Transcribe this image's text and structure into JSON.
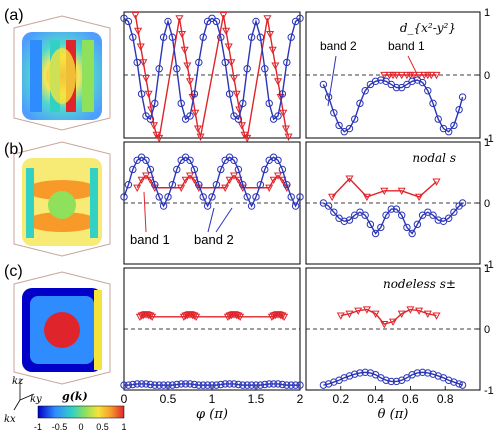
{
  "panel_labels": [
    "(a)",
    "(b)",
    "(c)"
  ],
  "colors": {
    "band1": "#e0242b",
    "band2": "#2b35b8",
    "colorbar": [
      "#0000c8",
      "#2f8cff",
      "#33d1c4",
      "#8fe05a",
      "#f5e33a",
      "#f79a2a",
      "#e0242b"
    ]
  },
  "colorbar": {
    "label": "g(k)",
    "ticks": [
      "-1",
      "-0.5",
      "0",
      "0.5",
      "1"
    ]
  },
  "axes_labels": {
    "kz": "kz",
    "ky": "ky",
    "kx": "kx"
  },
  "chart_data": [
    {
      "type": "line",
      "row": "a",
      "title": "",
      "xlabel": "",
      "ylabel": "",
      "xlim": [
        0,
        2
      ],
      "ylim": [
        -1,
        1
      ],
      "grid": false,
      "series": [
        {
          "name": "band 1",
          "color": "#e0242b",
          "marker": "triangle-down",
          "x": [
            0.13,
            0.16,
            0.19,
            0.22,
            0.25,
            0.28,
            0.31,
            0.34,
            0.37,
            0.4,
            0.63,
            0.66,
            0.69,
            0.72,
            0.75,
            0.78,
            0.81,
            0.84,
            0.87,
            1.13,
            1.16,
            1.19,
            1.22,
            1.25,
            1.28,
            1.31,
            1.34,
            1.37,
            1.4,
            1.63,
            1.66,
            1.69,
            1.72,
            1.75,
            1.78,
            1.81,
            1.84,
            1.87
          ],
          "y": [
            0.95,
            0.7,
            0.45,
            0.2,
            -0.05,
            -0.3,
            -0.55,
            -0.8,
            -0.95,
            -1.0,
            0.9,
            0.65,
            0.4,
            0.15,
            -0.1,
            -0.35,
            -0.6,
            -0.85,
            -0.98,
            0.95,
            0.7,
            0.45,
            0.2,
            -0.05,
            -0.3,
            -0.55,
            -0.8,
            -0.95,
            -1.0,
            0.9,
            0.65,
            0.4,
            0.15,
            -0.1,
            -0.35,
            -0.6,
            -0.85,
            -0.98
          ]
        },
        {
          "name": "band 2",
          "color": "#2b35b8",
          "marker": "circle",
          "x": [
            0.0,
            0.05,
            0.1,
            0.15,
            0.2,
            0.25,
            0.3,
            0.35,
            0.4,
            0.45,
            0.5,
            0.55,
            0.6,
            0.65,
            0.7,
            0.75,
            0.8,
            0.85,
            0.9,
            0.95,
            1.0,
            1.05,
            1.1,
            1.15,
            1.2,
            1.25,
            1.3,
            1.35,
            1.4,
            1.45,
            1.5,
            1.55,
            1.6,
            1.65,
            1.7,
            1.75,
            1.8,
            1.85,
            1.9,
            1.95,
            2.0
          ],
          "y": [
            0.9,
            0.85,
            0.6,
            0.2,
            -0.3,
            -0.65,
            -0.7,
            -0.45,
            0.1,
            0.6,
            0.85,
            0.6,
            0.1,
            -0.45,
            -0.7,
            -0.65,
            -0.3,
            0.2,
            0.6,
            0.85,
            0.9,
            0.85,
            0.6,
            0.2,
            -0.3,
            -0.65,
            -0.7,
            -0.45,
            0.1,
            0.6,
            0.85,
            0.6,
            0.1,
            -0.45,
            -0.7,
            -0.65,
            -0.3,
            0.2,
            0.6,
            0.85,
            0.9
          ]
        }
      ]
    },
    {
      "type": "line",
      "row": "a",
      "title": "d_{x²-y²}",
      "xlabel": "",
      "ylabel": "",
      "xlim": [
        0,
        1
      ],
      "ylim": [
        -1,
        1
      ],
      "grid": false,
      "annotations": [
        "band 2",
        "band 1"
      ],
      "series": [
        {
          "name": "band 1",
          "color": "#e0242b",
          "marker": "triangle-down",
          "x": [
            0.45,
            0.48,
            0.5,
            0.52,
            0.55,
            0.58,
            0.6,
            0.62,
            0.65,
            0.68,
            0.7,
            0.72,
            0.75
          ],
          "y": [
            0.0,
            0.0,
            0.0,
            0.0,
            0.0,
            0.0,
            0.0,
            0.0,
            0.0,
            0.0,
            0.0,
            0.0,
            0.0
          ]
        },
        {
          "name": "band 2",
          "color": "#2b35b8",
          "marker": "circle",
          "x": [
            0.1,
            0.13,
            0.16,
            0.19,
            0.22,
            0.25,
            0.28,
            0.31,
            0.34,
            0.37,
            0.4,
            0.43,
            0.46,
            0.49,
            0.52,
            0.55,
            0.58,
            0.61,
            0.64,
            0.67,
            0.7,
            0.73,
            0.76,
            0.79,
            0.82,
            0.85,
            0.88,
            0.9
          ],
          "y": [
            -0.15,
            -0.35,
            -0.6,
            -0.8,
            -0.9,
            -0.85,
            -0.7,
            -0.45,
            -0.25,
            -0.15,
            -0.1,
            -0.08,
            -0.1,
            -0.15,
            -0.2,
            -0.2,
            -0.15,
            -0.1,
            -0.08,
            -0.12,
            -0.25,
            -0.45,
            -0.7,
            -0.85,
            -0.9,
            -0.8,
            -0.55,
            -0.35
          ]
        }
      ]
    },
    {
      "type": "line",
      "row": "b",
      "title": "",
      "xlabel": "",
      "ylabel": "",
      "xlim": [
        0,
        2
      ],
      "ylim": [
        -1,
        1
      ],
      "grid": false,
      "annotations": [
        "band 1",
        "band 2"
      ],
      "series": [
        {
          "name": "band 1",
          "color": "#e0242b",
          "marker": "triangle-down",
          "x": [
            0.15,
            0.2,
            0.25,
            0.3,
            0.35,
            0.65,
            0.7,
            0.75,
            0.8,
            0.85,
            1.15,
            1.2,
            1.25,
            1.3,
            1.35,
            1.65,
            1.7,
            1.75,
            1.8,
            1.85
          ],
          "y": [
            0.25,
            0.38,
            0.45,
            0.38,
            0.25,
            0.25,
            0.38,
            0.45,
            0.38,
            0.25,
            0.25,
            0.38,
            0.45,
            0.38,
            0.25,
            0.25,
            0.38,
            0.45,
            0.38,
            0.25
          ]
        },
        {
          "name": "band 2",
          "color": "#2b35b8",
          "marker": "circle",
          "x": [
            0.0,
            0.05,
            0.1,
            0.15,
            0.2,
            0.25,
            0.3,
            0.35,
            0.4,
            0.45,
            0.5,
            0.55,
            0.6,
            0.65,
            0.7,
            0.75,
            0.8,
            0.85,
            0.9,
            0.95,
            1.0,
            1.05,
            1.1,
            1.15,
            1.2,
            1.25,
            1.3,
            1.35,
            1.4,
            1.45,
            1.5,
            1.55,
            1.6,
            1.65,
            1.7,
            1.75,
            1.8,
            1.85,
            1.9,
            1.95,
            2.0
          ],
          "y": [
            0.1,
            0.3,
            0.55,
            0.7,
            0.75,
            0.7,
            0.55,
            0.3,
            0.1,
            -0.05,
            0.1,
            0.3,
            0.55,
            0.7,
            0.75,
            0.7,
            0.55,
            0.3,
            0.1,
            -0.05,
            0.1,
            0.3,
            0.55,
            0.7,
            0.75,
            0.7,
            0.55,
            0.3,
            0.1,
            -0.05,
            0.1,
            0.3,
            0.55,
            0.7,
            0.75,
            0.7,
            0.55,
            0.3,
            0.1,
            -0.05,
            0.1
          ]
        }
      ]
    },
    {
      "type": "line",
      "row": "b",
      "title": "nodal s",
      "xlabel": "",
      "ylabel": "",
      "xlim": [
        0,
        1
      ],
      "ylim": [
        -1,
        1
      ],
      "grid": false,
      "series": [
        {
          "name": "band 1",
          "color": "#e0242b",
          "marker": "triangle-down",
          "x": [
            0.15,
            0.25,
            0.35,
            0.45,
            0.55,
            0.65,
            0.75
          ],
          "y": [
            0.1,
            0.4,
            0.1,
            0.2,
            0.2,
            0.1,
            0.35
          ]
        },
        {
          "name": "band 2",
          "color": "#2b35b8",
          "marker": "circle",
          "x": [
            0.1,
            0.13,
            0.16,
            0.19,
            0.22,
            0.25,
            0.28,
            0.31,
            0.34,
            0.37,
            0.4,
            0.43,
            0.46,
            0.49,
            0.52,
            0.55,
            0.58,
            0.61,
            0.64,
            0.67,
            0.7,
            0.73,
            0.76,
            0.79,
            0.82,
            0.85,
            0.88,
            0.9
          ],
          "y": [
            0.0,
            -0.05,
            -0.15,
            -0.25,
            -0.3,
            -0.28,
            -0.2,
            -0.15,
            -0.2,
            -0.35,
            -0.5,
            -0.4,
            -0.2,
            -0.1,
            -0.1,
            -0.2,
            -0.4,
            -0.5,
            -0.35,
            -0.2,
            -0.15,
            -0.2,
            -0.28,
            -0.3,
            -0.25,
            -0.15,
            -0.05,
            0.0
          ]
        }
      ]
    },
    {
      "type": "line",
      "row": "c",
      "title": "",
      "xlabel": "φ (π)",
      "ylabel": "",
      "xlim": [
        0,
        2
      ],
      "ylim": [
        -1,
        1
      ],
      "xticks": [
        "0",
        "0.5",
        "1",
        "1.5",
        "2"
      ],
      "grid": false,
      "series": [
        {
          "name": "band 1",
          "color": "#e0242b",
          "marker": "triangle-down",
          "x": [
            0.18,
            0.2,
            0.22,
            0.24,
            0.26,
            0.28,
            0.3,
            0.32,
            0.68,
            0.7,
            0.72,
            0.74,
            0.76,
            0.78,
            0.8,
            0.82,
            1.18,
            1.2,
            1.22,
            1.24,
            1.26,
            1.28,
            1.3,
            1.32,
            1.68,
            1.7,
            1.72,
            1.74,
            1.76,
            1.78,
            1.8,
            1.82
          ],
          "y": [
            0.2,
            0.22,
            0.23,
            0.24,
            0.24,
            0.23,
            0.22,
            0.2,
            0.2,
            0.22,
            0.23,
            0.24,
            0.24,
            0.23,
            0.22,
            0.2,
            0.2,
            0.22,
            0.23,
            0.24,
            0.24,
            0.23,
            0.22,
            0.2,
            0.2,
            0.22,
            0.23,
            0.24,
            0.24,
            0.23,
            0.22,
            0.2
          ]
        },
        {
          "name": "band 2",
          "color": "#2b35b8",
          "marker": "circle",
          "x": [
            0.0,
            0.05,
            0.1,
            0.15,
            0.2,
            0.25,
            0.3,
            0.35,
            0.4,
            0.45,
            0.5,
            0.55,
            0.6,
            0.65,
            0.7,
            0.75,
            0.8,
            0.85,
            0.9,
            0.95,
            1.0,
            1.05,
            1.1,
            1.15,
            1.2,
            1.25,
            1.3,
            1.35,
            1.4,
            1.45,
            1.5,
            1.55,
            1.6,
            1.65,
            1.7,
            1.75,
            1.8,
            1.85,
            1.9,
            1.95,
            2.0
          ],
          "y": [
            -0.92,
            -0.92,
            -0.91,
            -0.9,
            -0.9,
            -0.9,
            -0.91,
            -0.92,
            -0.92,
            -0.92,
            -0.92,
            -0.92,
            -0.91,
            -0.9,
            -0.9,
            -0.9,
            -0.91,
            -0.92,
            -0.92,
            -0.92,
            -0.92,
            -0.92,
            -0.91,
            -0.9,
            -0.9,
            -0.9,
            -0.91,
            -0.92,
            -0.92,
            -0.92,
            -0.92,
            -0.92,
            -0.91,
            -0.9,
            -0.9,
            -0.9,
            -0.91,
            -0.92,
            -0.92,
            -0.92,
            -0.92
          ]
        }
      ]
    },
    {
      "type": "line",
      "row": "c",
      "title": "nodeless s±",
      "xlabel": "θ (π)",
      "ylabel": "",
      "xlim": [
        0,
        1
      ],
      "ylim": [
        -1,
        1
      ],
      "xticks": [
        "0.2",
        "0.4",
        "0.6",
        "0.8"
      ],
      "yticks": [
        "1",
        "0",
        "-1"
      ],
      "grid": false,
      "series": [
        {
          "name": "band 1",
          "color": "#e0242b",
          "marker": "triangle-down",
          "x": [
            0.2,
            0.25,
            0.3,
            0.35,
            0.4,
            0.45,
            0.5,
            0.55,
            0.6,
            0.65,
            0.7,
            0.75
          ],
          "y": [
            0.22,
            0.25,
            0.3,
            0.32,
            0.25,
            0.08,
            0.12,
            0.25,
            0.32,
            0.3,
            0.25,
            0.22
          ]
        },
        {
          "name": "band 2",
          "color": "#2b35b8",
          "marker": "circle",
          "x": [
            0.1,
            0.13,
            0.16,
            0.19,
            0.22,
            0.25,
            0.28,
            0.31,
            0.34,
            0.37,
            0.4,
            0.43,
            0.46,
            0.49,
            0.52,
            0.55,
            0.58,
            0.61,
            0.64,
            0.67,
            0.7,
            0.73,
            0.76,
            0.79,
            0.82,
            0.85,
            0.88,
            0.9
          ],
          "y": [
            -0.92,
            -0.9,
            -0.87,
            -0.84,
            -0.8,
            -0.77,
            -0.74,
            -0.72,
            -0.71,
            -0.72,
            -0.75,
            -0.8,
            -0.84,
            -0.86,
            -0.86,
            -0.84,
            -0.8,
            -0.75,
            -0.72,
            -0.71,
            -0.72,
            -0.74,
            -0.77,
            -0.8,
            -0.84,
            -0.87,
            -0.9,
            -0.92
          ]
        }
      ]
    }
  ]
}
